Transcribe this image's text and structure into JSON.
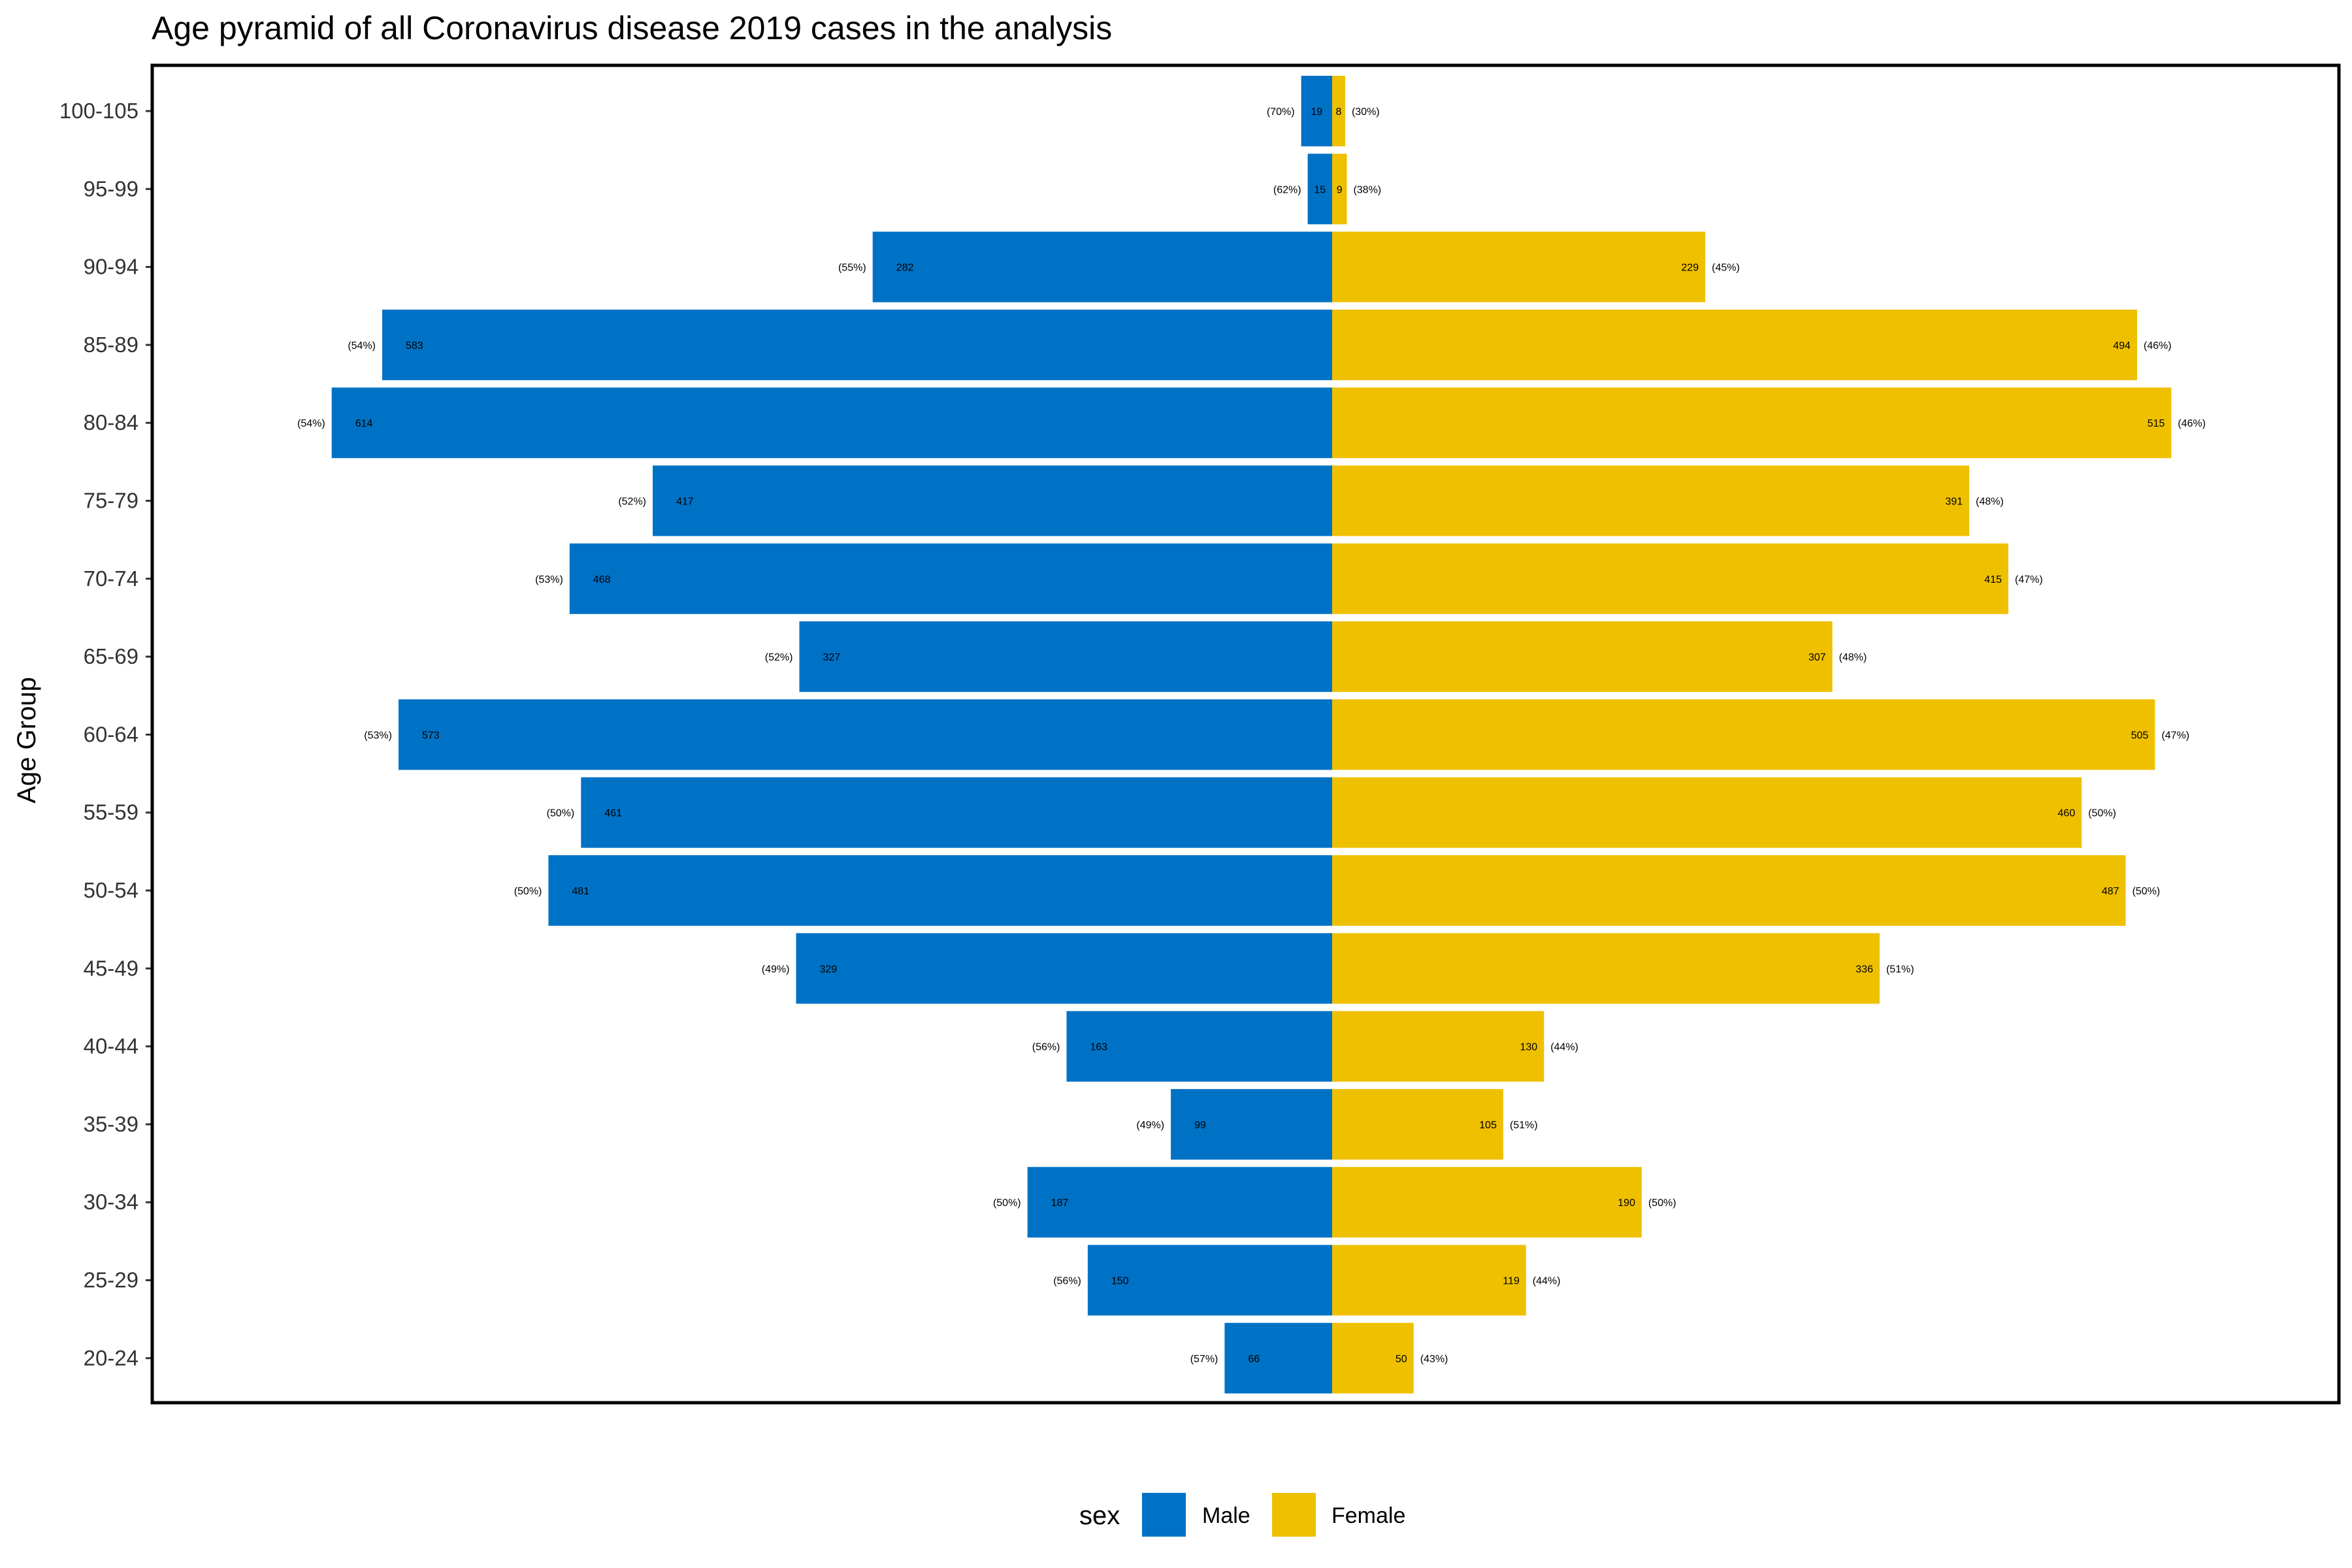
{
  "chart_data": {
    "type": "bar",
    "orientation": "horizontal-pyramid",
    "title": "Age pyramid of all Coronavirus disease 2019 cases in the analysis",
    "ylabel": "Age Group",
    "xlabel": "",
    "categories": [
      "100-105",
      "95-99",
      "90-94",
      "85-89",
      "80-84",
      "75-79",
      "70-74",
      "65-69",
      "60-64",
      "55-59",
      "50-54",
      "45-49",
      "40-44",
      "35-39",
      "30-34",
      "25-29",
      "20-24"
    ],
    "series": [
      {
        "name": "Male",
        "color": "#0072C6",
        "side": "left",
        "values": [
          19,
          15,
          282,
          583,
          614,
          417,
          468,
          327,
          573,
          461,
          481,
          329,
          163,
          99,
          187,
          150,
          66
        ],
        "percent_labels": [
          "(70%)",
          "(62%)",
          "(55%)",
          "(54%)",
          "(54%)",
          "(52%)",
          "(53%)",
          "(52%)",
          "(53%)",
          "(50%)",
          "(50%)",
          "(49%)",
          "(56%)",
          "(49%)",
          "(50%)",
          "(56%)",
          "(57%)"
        ]
      },
      {
        "name": "Female",
        "color": "#EFC000",
        "side": "right",
        "values": [
          8,
          9,
          229,
          494,
          515,
          391,
          415,
          307,
          505,
          460,
          487,
          336,
          130,
          105,
          190,
          119,
          50
        ],
        "percent_labels": [
          "(30%)",
          "(38%)",
          "(45%)",
          "(46%)",
          "(46%)",
          "(48%)",
          "(47%)",
          "(48%)",
          "(47%)",
          "(50%)",
          "(50%)",
          "(51%)",
          "(44%)",
          "(51%)",
          "(50%)",
          "(44%)",
          "(43%)"
        ]
      }
    ],
    "x_abs_max": 664,
    "legend": {
      "title": "sex",
      "position": "bottom"
    },
    "grid": false
  }
}
